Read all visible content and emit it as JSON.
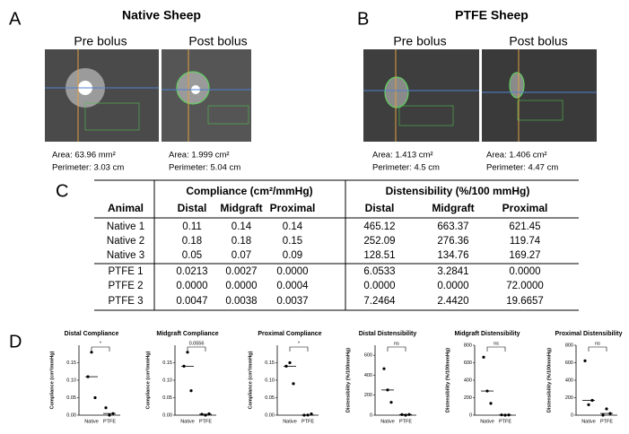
{
  "panels": {
    "a": {
      "label": "A",
      "title": "Native Sheep",
      "images": [
        {
          "caption": "Pre bolus",
          "area": "Area: 63.96 mm²",
          "perimeter": "Perimeter: 3.03 cm"
        },
        {
          "caption": "Post bolus",
          "area": "Area: 1.999 cm²",
          "perimeter": "Perimeter: 5.04 cm"
        }
      ]
    },
    "b": {
      "label": "B",
      "title": "PTFE Sheep",
      "images": [
        {
          "caption": "Pre bolus",
          "area": "Area: 1.413 cm²",
          "perimeter": "Perimeter: 4.5 cm"
        },
        {
          "caption": "Post bolus",
          "area": "Area: 1.406 cm²",
          "perimeter": "Perimeter: 4.47 cm"
        }
      ]
    },
    "c": {
      "label": "C",
      "table": {
        "group_headers": [
          "Compliance (cm²/mmHg)",
          "Distensibility (%/100 mmHg)"
        ],
        "columns": [
          "Animal",
          "Distal",
          "Midgraft",
          "Proximal",
          "Distal",
          "Midgraft",
          "Proximal"
        ],
        "rows": [
          [
            "Native 1",
            "0.11",
            "0.14",
            "0.14",
            "465.12",
            "663.37",
            "621.45"
          ],
          [
            "Native 2",
            "0.18",
            "0.18",
            "0.15",
            "252.09",
            "276.36",
            "119.74"
          ],
          [
            "Native 3",
            "0.05",
            "0.07",
            "0.09",
            "128.51",
            "134.76",
            "169.27"
          ],
          [
            "PTFE 1",
            "0.0213",
            "0.0027",
            "0.0000",
            "6.0533",
            "3.2841",
            "0.0000"
          ],
          [
            "PTFE 2",
            "0.0000",
            "0.0000",
            "0.0004",
            "0.0000",
            "0.0000",
            "72.0000"
          ],
          [
            "PTFE 3",
            "0.0047",
            "0.0038",
            "0.0037",
            "7.2464",
            "2.4420",
            "19.6657"
          ]
        ]
      }
    },
    "d": {
      "label": "D"
    }
  },
  "chart_data": [
    {
      "type": "dot",
      "title": "Distal  Compliance",
      "y_label": "Compliance (cm²/mmHg)",
      "categories": [
        "Native",
        "PTFE"
      ],
      "values": [
        [
          0.11,
          0.18,
          0.05
        ],
        [
          0.0213,
          0,
          0.0047
        ]
      ],
      "medians": [
        0.11,
        0.0047
      ],
      "annotation": "*",
      "color": "#000000",
      "ylim": [
        0,
        0.2
      ],
      "yticks": [
        {
          "value": 0,
          "label": "0.00"
        },
        {
          "value": 0.05,
          "label": "0.05"
        },
        {
          "value": 0.1,
          "label": "0.10"
        },
        {
          "value": 0.15,
          "label": "0.15"
        }
      ]
    },
    {
      "type": "dot",
      "title": "Midgraft  Compliance",
      "y_label": "Compliance (cm²/mmHg)",
      "categories": [
        "Native",
        "PTFE"
      ],
      "values": [
        [
          0.14,
          0.18,
          0.07
        ],
        [
          0.0027,
          0,
          0.0038
        ]
      ],
      "medians": [
        0.14,
        0.0027
      ],
      "annotation": "0.0556",
      "color": "#000000",
      "ylim": [
        0,
        0.2
      ],
      "yticks": [
        {
          "value": 0,
          "label": "0.00"
        },
        {
          "value": 0.05,
          "label": "0.05"
        },
        {
          "value": 0.1,
          "label": "0.10"
        },
        {
          "value": 0.15,
          "label": "0.15"
        }
      ]
    },
    {
      "type": "dot",
      "title": "Proximal Compliance",
      "y_label": "Compliance (cm²/mmHg)",
      "categories": [
        "Native",
        "PTFE"
      ],
      "values": [
        [
          0.14,
          0.15,
          0.09
        ],
        [
          0,
          0.0004,
          0.0037
        ]
      ],
      "medians": [
        0.14,
        0.0004
      ],
      "annotation": "*",
      "color": "#000000",
      "ylim": [
        0,
        0.2
      ],
      "yticks": [
        {
          "value": 0,
          "label": "0.00"
        },
        {
          "value": 0.05,
          "label": "0.05"
        },
        {
          "value": 0.1,
          "label": "0.10"
        },
        {
          "value": 0.15,
          "label": "0.15"
        }
      ]
    },
    {
      "type": "dot",
      "title": "Distal  Distensibility",
      "y_label": "Distensibility (%/100mmHg)",
      "categories": [
        "Native",
        "PTFE"
      ],
      "values": [
        [
          465.12,
          252.09,
          128.51
        ],
        [
          6.0533,
          0,
          7.2464
        ]
      ],
      "medians": [
        252.09,
        6.0533
      ],
      "annotation": "ns",
      "color": "#000000",
      "ylim": [
        0,
        700
      ],
      "yticks": [
        0,
        200,
        400,
        600
      ]
    },
    {
      "type": "dot",
      "title": "Midgraft Distensibility",
      "y_label": "Distensibility (%/100mmHg)",
      "categories": [
        "Native",
        "PTFE"
      ],
      "values": [
        [
          663.37,
          276.36,
          134.76
        ],
        [
          3.2841,
          0,
          2.442
        ]
      ],
      "medians": [
        276.36,
        2.442
      ],
      "annotation": "ns",
      "color": "#000000",
      "ylim": [
        0,
        800
      ],
      "yticks": [
        0,
        200,
        400,
        600,
        800
      ]
    },
    {
      "type": "dot",
      "title": "Proximal Distensibility",
      "y_label": "Distensibility (%/100mmHg)",
      "categories": [
        "Native",
        "PTFE"
      ],
      "values": [
        [
          621.45,
          119.74,
          169.27
        ],
        [
          0,
          72,
          19.6657
        ]
      ],
      "medians": [
        169.27,
        19.6657
      ],
      "annotation": "ns",
      "color": "#000000",
      "ylim": [
        0,
        800
      ],
      "yticks": [
        0,
        200,
        400,
        600,
        800
      ]
    }
  ]
}
